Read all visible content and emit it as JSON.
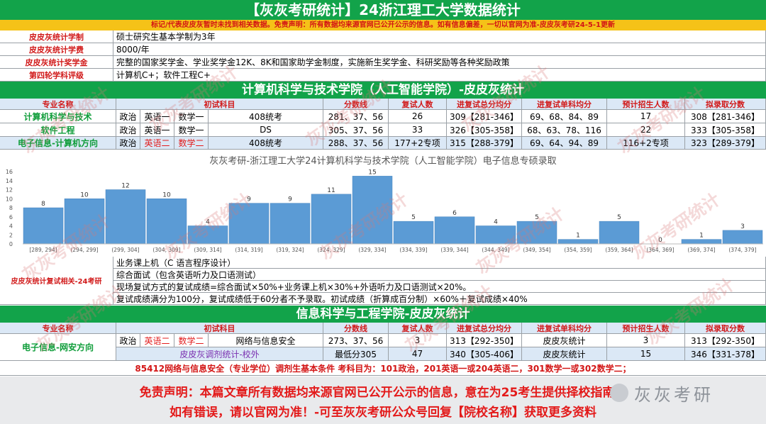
{
  "title": "【灰灰考研统计】24浙江理工大学数据统计",
  "notice": "标记/代表皮皮灰暂时未找到相关数据。免责声明：所有数据均来源官网已公开公示的信息。如有信息偏差，一切以官网为准-皮皮灰考研24-5-1更新",
  "info_rows": [
    {
      "label": "皮皮灰统计学制",
      "value": "硕士研究生基本学制为3年"
    },
    {
      "label": "皮皮灰统计学费",
      "value": "8000/年"
    },
    {
      "label": "皮皮灰统计奖学金",
      "value": "完整的国家奖学金、学业奖学金12K、8K和国家助学金制度，实施新生奖学金、科研奖励等各种奖励政策"
    },
    {
      "label": "第四轮学科评级",
      "value": "计算机C+；软件工程C+"
    }
  ],
  "section1_title": "计算机科学与技术学院（人工智能学院）-皮皮灰统计",
  "table_headers": [
    "专业名称",
    "初试科目",
    "分数线",
    "复试人数",
    "进复试总分均分",
    "进复试单科均分",
    "预计招生人数",
    "拟录取分数"
  ],
  "section1_rows": [
    {
      "major": "计算机科学与技术",
      "s1": "政治",
      "s2": "英语一",
      "s3": "数学一",
      "s4": "408统考",
      "line": "281、37、56",
      "retest": "26",
      "avg": "309【281-346】",
      "single": "69、68、84、89",
      "plan": "17",
      "admit": "308【281-346】"
    },
    {
      "major": "软件工程",
      "s1": "政治",
      "s2": "英语一",
      "s3": "数学一",
      "s4": "DS",
      "line": "305、37、56",
      "retest": "33",
      "avg": "326【305-358】",
      "single": "68、63、78、116",
      "plan": "22",
      "admit": "333【305-358】"
    },
    {
      "major": "电子信息-计算机方向",
      "s1": "政治",
      "s2": "英语二",
      "s3": "数学二",
      "s4": "408统考",
      "line": "288、37、56",
      "retest": "177+2专项",
      "avg": "315【288-379】",
      "single": "69、64、94、89",
      "plan": "116+2专项",
      "admit": "323【289-379】"
    }
  ],
  "chart_data": {
    "type": "bar",
    "title": "灰灰考研-浙江理工大学24计算机科学与技术学院（人工智能学院）电子信息专硕录取",
    "categories": [
      "[289, 294]",
      "(294, 299]",
      "(299, 304]",
      "(304, 309]",
      "(309, 314]",
      "(314, 319]",
      "(319, 324]",
      "(324, 329]",
      "(329, 334]",
      "(334, 339]",
      "(339, 344]",
      "(344, 349]",
      "(349, 354]",
      "(354, 359]",
      "(359, 364]",
      "(364, 369]",
      "(369, 374]",
      "(374, 379]"
    ],
    "values": [
      8,
      10,
      12,
      10,
      4,
      9,
      9,
      11,
      15,
      5,
      6,
      4,
      5,
      1,
      5,
      0,
      1,
      3
    ],
    "yticks": [
      "0",
      "2",
      "4",
      "6",
      "8",
      "10",
      "12",
      "14",
      "16"
    ],
    "ylim": [
      0,
      16
    ],
    "bar_color": "#5b9bd5"
  },
  "retest_label": "皮皮灰统计复试相关-24考研",
  "retest_lines": [
    "业务课上机（C 语言程序设计）",
    "综合面试（包含英语听力及口语测试）",
    "现场复试方式的复试成绩=综合面试×50%+业务课上机×30%+外语听力及口语测试×20%。",
    "复试成绩满分为100分，复试成绩低于60分者不予录取。初试成绩（折算成百分制）×60%＋复试成绩×40%"
  ],
  "section2_title": "信息科学与工程学院-皮皮灰统计",
  "section2_rows": [
    {
      "major": "电子信息-网安方向",
      "s1": "政治",
      "s2": "英语二",
      "s3": "数学二",
      "s4": "网络与信息安全",
      "line": "273、37、56",
      "retest": "3",
      "avg": "313【292-350】",
      "single": "皮皮灰统计",
      "plan": "3",
      "admit": "313【292-350】"
    },
    {
      "adjust_label": "皮皮灰调剂统计-校外",
      "line": "最低分305",
      "retest": "47",
      "avg": "340【305-406】",
      "single": "皮皮灰统计",
      "plan": "15",
      "admit": "346【331-378】"
    }
  ],
  "adjust_condition": "85412网络与信息安全（专业学位）调剂生基本条件 考科目为：101政治，201英语一或204英语二，301数学一或302数学二；",
  "disclaimer_line1": "免责声明：本篇文章所有数据均来源官网已公开公示的信息，意在为25考生提供择校指南！",
  "disclaimer_line2": "如有错误，请以官网为准！-可至灰灰考研公众号回复【院校名称】获取更多资料",
  "logo_text": "灰灰考研",
  "watermark": "灰灰考研统计"
}
